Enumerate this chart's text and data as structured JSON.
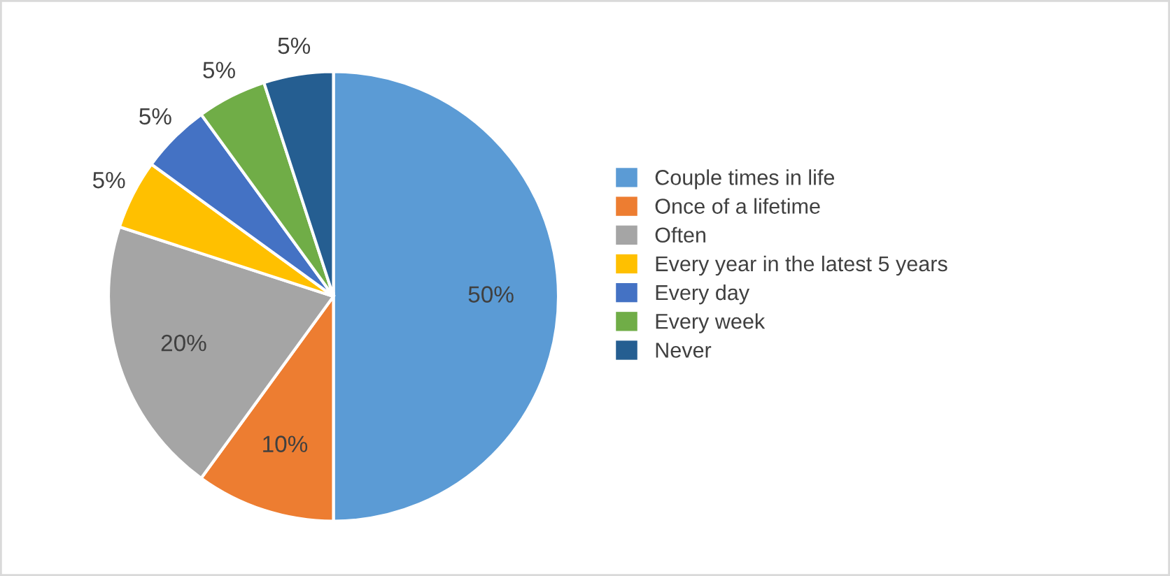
{
  "chart_data": {
    "type": "pie",
    "categories": [
      "Couple times in life",
      "Once of a lifetime",
      "Often",
      "Every year in the latest 5 years",
      "Every day",
      "Every week",
      "Never"
    ],
    "values": [
      50,
      10,
      20,
      5,
      5,
      5,
      5
    ],
    "colors": [
      "#5b9bd5",
      "#ed7d31",
      "#a5a5a5",
      "#ffc000",
      "#4472c4",
      "#70ad47",
      "#255e91"
    ],
    "value_labels": [
      "50%",
      "10%",
      "20%",
      "5%",
      "5%",
      "5%",
      "5%"
    ],
    "legend": "right"
  }
}
